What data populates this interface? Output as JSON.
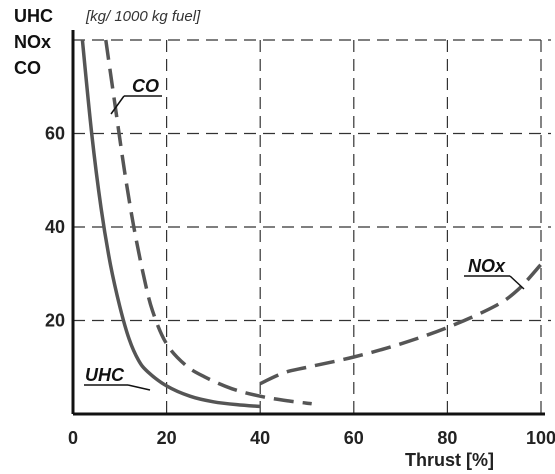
{
  "chart_data": {
    "type": "line",
    "ylabel_lines": [
      "UHC",
      "NOx",
      "CO"
    ],
    "yunit": "[kg/ 1000 kg fuel]",
    "xlabel": "Thrust [%]",
    "xlim": [
      0,
      100
    ],
    "ylim": [
      0,
      80
    ],
    "xticks": [
      0,
      20,
      40,
      60,
      80,
      100
    ],
    "yticks": [
      20,
      40,
      60
    ],
    "grid": true,
    "series": [
      {
        "name": "UHC",
        "style": "solid",
        "color": "#555555",
        "points": [
          [
            2,
            80
          ],
          [
            4,
            60
          ],
          [
            6,
            44
          ],
          [
            8,
            32
          ],
          [
            10,
            23
          ],
          [
            12,
            16
          ],
          [
            14,
            11.5
          ],
          [
            16,
            9
          ],
          [
            20,
            6
          ],
          [
            25,
            3.8
          ],
          [
            30,
            2.6
          ],
          [
            35,
            2
          ],
          [
            40,
            1.6
          ]
        ]
      },
      {
        "name": "CO",
        "style": "dashed",
        "color": "#555555",
        "points": [
          [
            7,
            80
          ],
          [
            9,
            66
          ],
          [
            11,
            52
          ],
          [
            13,
            40
          ],
          [
            15,
            30
          ],
          [
            17,
            22
          ],
          [
            20,
            15
          ],
          [
            24,
            10.5
          ],
          [
            28,
            8
          ],
          [
            34,
            5.4
          ],
          [
            40,
            3.8
          ],
          [
            46,
            2.8
          ],
          [
            51,
            2.2
          ]
        ]
      },
      {
        "name": "NOx",
        "style": "dashed",
        "color": "#555555",
        "points": [
          [
            40,
            6.5
          ],
          [
            45,
            8.8
          ],
          [
            50,
            10
          ],
          [
            60,
            12.2
          ],
          [
            70,
            15
          ],
          [
            80,
            18.5
          ],
          [
            90,
            23
          ],
          [
            95,
            26.5
          ],
          [
            100,
            32
          ]
        ]
      }
    ],
    "annotations": [
      "CO",
      "UHC",
      "NOx"
    ]
  }
}
